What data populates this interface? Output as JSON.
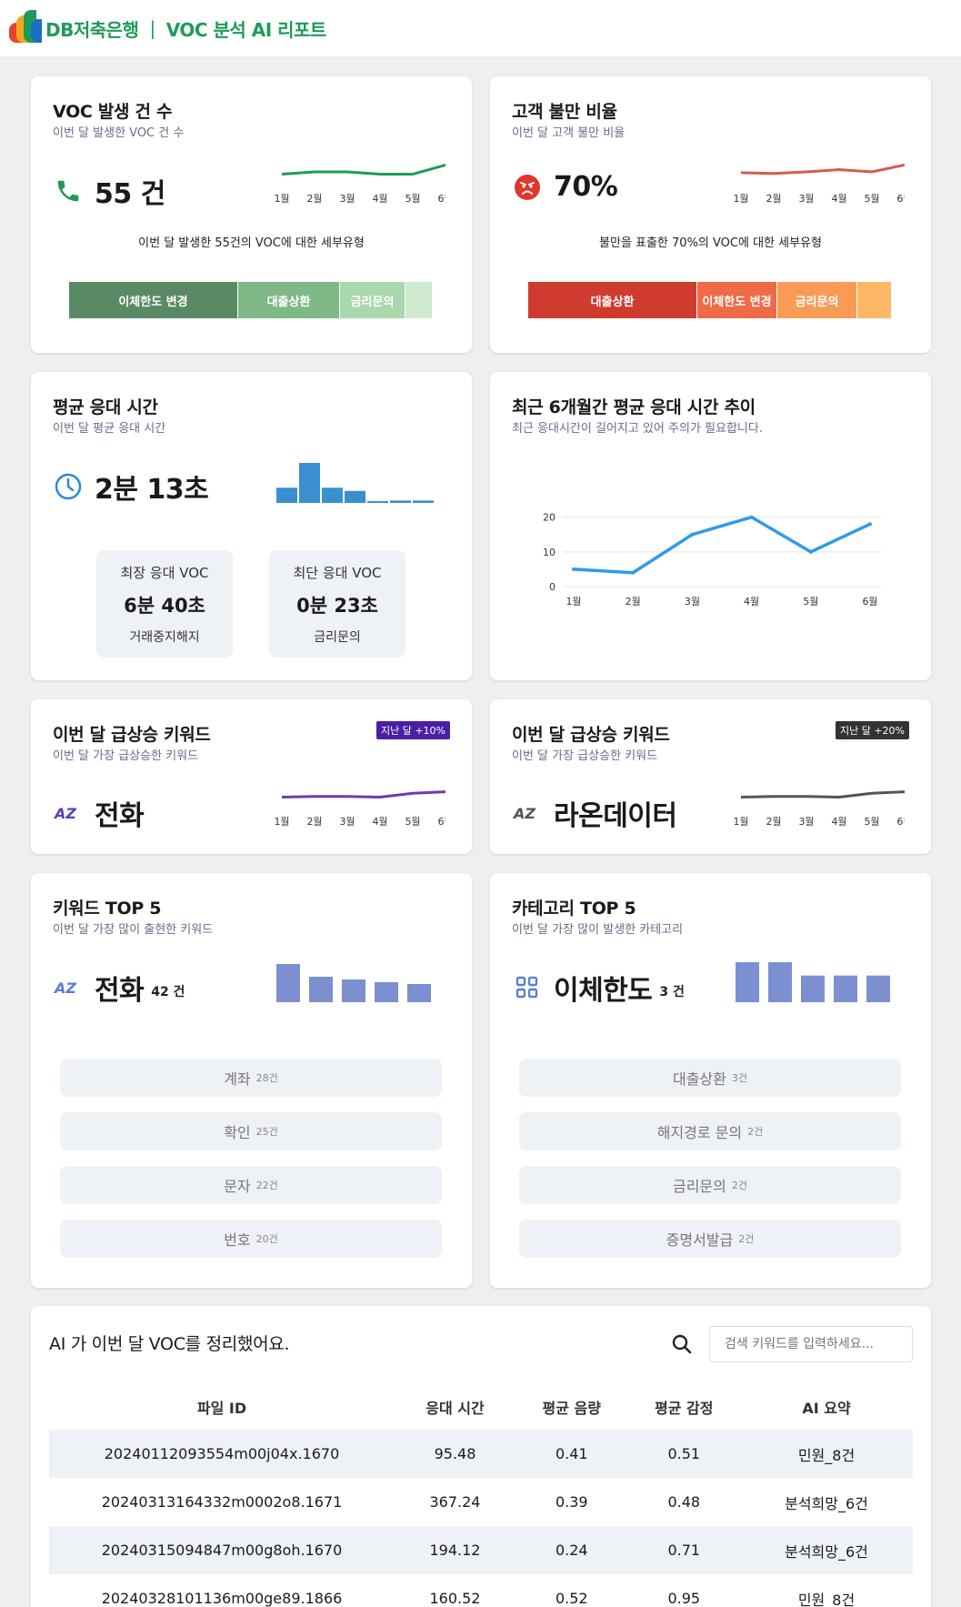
{
  "header": {
    "brand": "DB저축은행",
    "divider": "|",
    "title": "VOC 분석 AI 리포트"
  },
  "months": [
    "1월",
    "2월",
    "3월",
    "4월",
    "5월",
    "6월"
  ],
  "voc_count": {
    "title": "VOC 발생 건 수",
    "subtitle": "이번 달 발생한 VOC 건 수",
    "value": "55 건",
    "caption": "이번 달 발생한 55건의 VOC에 대한 세부유형",
    "segments": [
      {
        "label": "이체한도 변경",
        "share": 0.465,
        "color": "#5a8a64"
      },
      {
        "label": "대출상환",
        "share": 0.28,
        "color": "#7fb987"
      },
      {
        "label": "금리문의",
        "share": 0.18,
        "color": "#a9d8ad"
      },
      {
        "label": "",
        "share": 0.075,
        "color": "#cfeacf"
      }
    ],
    "trend": [
      40,
      43,
      43,
      40,
      40,
      52
    ],
    "color": "#1e9b58"
  },
  "dissatisfaction": {
    "title": "고객 불만 비율",
    "subtitle": "이번 달 고객 불만 비율",
    "value": "70%",
    "caption": "불만을 표출한 70%의 VOC에 대한 세부유형",
    "segments": [
      {
        "label": "대출상환",
        "share": 0.465,
        "color": "#d03b2f"
      },
      {
        "label": "이체한도 변경",
        "share": 0.22,
        "color": "#ef6a47"
      },
      {
        "label": "금리문의",
        "share": 0.22,
        "color": "#f99b54"
      },
      {
        "label": "",
        "share": 0.095,
        "color": "#fdb866"
      }
    ],
    "trend": [
      42,
      41,
      43,
      46,
      43,
      52
    ],
    "color": "#d55a52"
  },
  "avg_response": {
    "title": "평균 응대 시간",
    "subtitle": "이번 달 평균 응대 시간",
    "value": "2분 13초",
    "bars": [
      0.38,
      1.0,
      0.38,
      0.3,
      0.04,
      0.06,
      0.06
    ],
    "color": "#3a8fd0",
    "longest": {
      "title": "최장 응대 VOC",
      "value": "6분 40초",
      "type": "거래중지해지"
    },
    "shortest": {
      "title": "최단 응대 VOC",
      "value": "0분 23초",
      "type": "금리문의"
    }
  },
  "response_trend": {
    "title": "최근 6개월간 평균 응대 시간 추이",
    "subtitle": "최근 응대시간이 길어지고 있어 주의가 필요합니다.",
    "chart_data": {
      "type": "line",
      "categories": [
        "1월",
        "2월",
        "3월",
        "4월",
        "5월",
        "6월"
      ],
      "values": [
        5,
        4,
        15,
        20,
        10,
        18
      ],
      "yticks": [
        0,
        10,
        20
      ],
      "ylim": [
        0,
        22
      ],
      "color": "#2f9be8"
    }
  },
  "keyword_rise_1": {
    "title": "이번 달 급상승 키워드",
    "subtitle": "이번 달 가장 급상승한 키워드",
    "badge": "지난 달 +10%",
    "badge_color": "#4a1fa3",
    "value": "전화",
    "trend": [
      40,
      41,
      41,
      40,
      45,
      47
    ],
    "color": "#6a3bb5"
  },
  "keyword_rise_2": {
    "title": "이번 달 급상승 키워드",
    "subtitle": "이번 달 가장 급상승한 키워드",
    "badge": "지난 달 +20%",
    "badge_color": "#333333",
    "value": "라온데이터",
    "trend": [
      40,
      41,
      41,
      40,
      45,
      47
    ],
    "color": "#555555"
  },
  "keyword_top5": {
    "title": "키워드 TOP 5",
    "subtitle": "이번 달 가장 많이 출현한 키워드",
    "value": "전화",
    "unit": "42 건",
    "bars": [
      42,
      28,
      25,
      22,
      20
    ],
    "color": "#7b8fd1",
    "items": [
      {
        "label": "계좌",
        "count": "28건"
      },
      {
        "label": "확인",
        "count": "25건"
      },
      {
        "label": "문자",
        "count": "22건"
      },
      {
        "label": "번호",
        "count": "20건"
      }
    ]
  },
  "category_top5": {
    "title": "카테고리 TOP 5",
    "subtitle": "이번 달 가장 많이 발생한 카테고리",
    "value": "이체한도",
    "unit": "3 건",
    "bars": [
      3,
      3,
      2,
      2,
      2
    ],
    "color": "#7b8fd1",
    "items": [
      {
        "label": "대출상환",
        "count": "3건"
      },
      {
        "label": "해지경로 문의",
        "count": "2건"
      },
      {
        "label": "금리문의",
        "count": "2건"
      },
      {
        "label": "증명서발급",
        "count": "2건"
      }
    ]
  },
  "ai_table": {
    "title": "AI 가 이번 달 VOC를 정리했어요.",
    "search_placeholder": "검색 키워드를 입력하세요...",
    "columns": [
      "파일 ID",
      "응대 시간",
      "평균 음량",
      "평균 감정",
      "AI 요약"
    ],
    "rows": [
      [
        "20240112093554m00j04x.1670",
        "95.48",
        "0.41",
        "0.51",
        "민원_8건"
      ],
      [
        "20240313164332m0002o8.1671",
        "367.24",
        "0.39",
        "0.48",
        "분석희망_6건"
      ],
      [
        "20240315094847m00g8oh.1670",
        "194.12",
        "0.24",
        "0.71",
        "분석희망_6건"
      ],
      [
        "20240328101136m00ge89.1866",
        "160.52",
        "0.52",
        "0.95",
        "민원_8건"
      ]
    ]
  }
}
